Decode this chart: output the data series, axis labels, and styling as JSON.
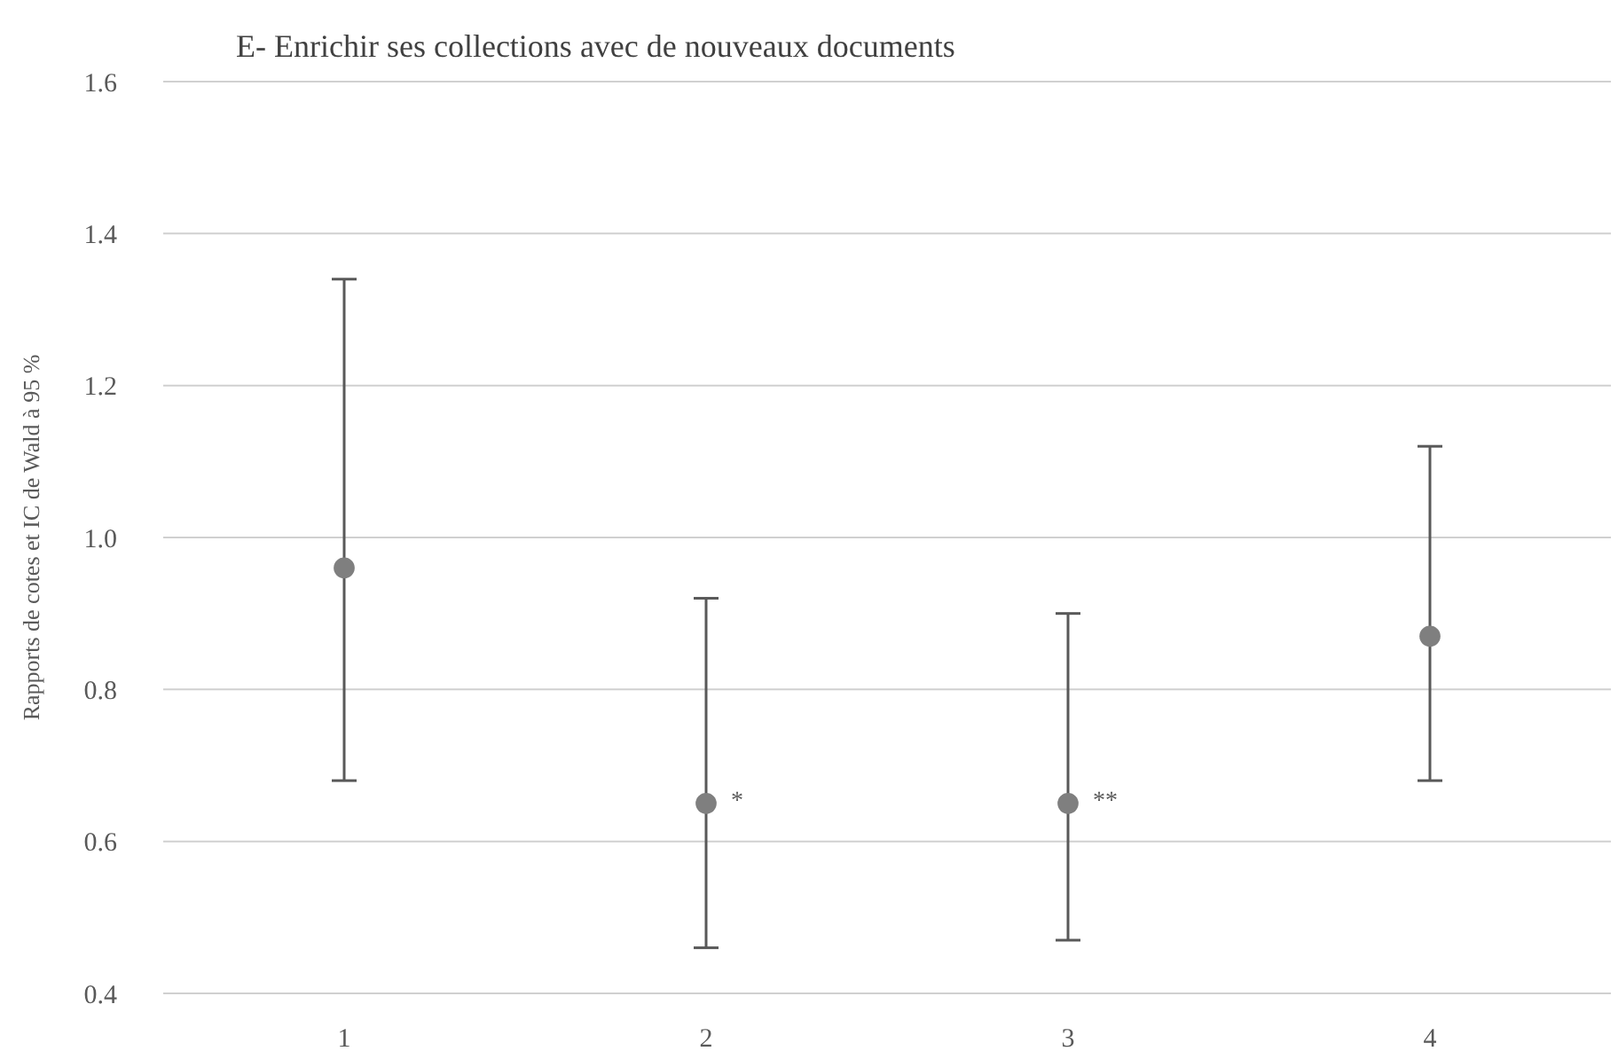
{
  "chart_data": {
    "type": "scatter",
    "title": "E- Enrichir ses collections avec de nouveaux documents",
    "ylabel": "Rapports de cotes et IC de Wald à 95 %",
    "categories": [
      "1",
      "2",
      "3",
      "4"
    ],
    "series": [
      {
        "color": "#7f7f7f",
        "values": [
          0.96,
          0.65,
          0.65,
          0.87
        ],
        "errors": [
          [
            0.68,
            1.34
          ],
          [
            0.46,
            0.92
          ],
          [
            0.47,
            0.9
          ],
          [
            0.68,
            1.12
          ]
        ]
      }
    ],
    "ylim": [
      0.4,
      1.6
    ],
    "yticks": [
      0.4,
      0.6,
      0.8,
      {
        "value": 1,
        "label": "1.0"
      },
      1.2,
      1.4,
      1.6
    ],
    "grid": "y",
    "marker": "circle",
    "annotations": [
      {
        "text": "*",
        "x": "2",
        "y": 0.65
      },
      {
        "text": "**",
        "x": "3",
        "y": 0.65
      }
    ]
  }
}
